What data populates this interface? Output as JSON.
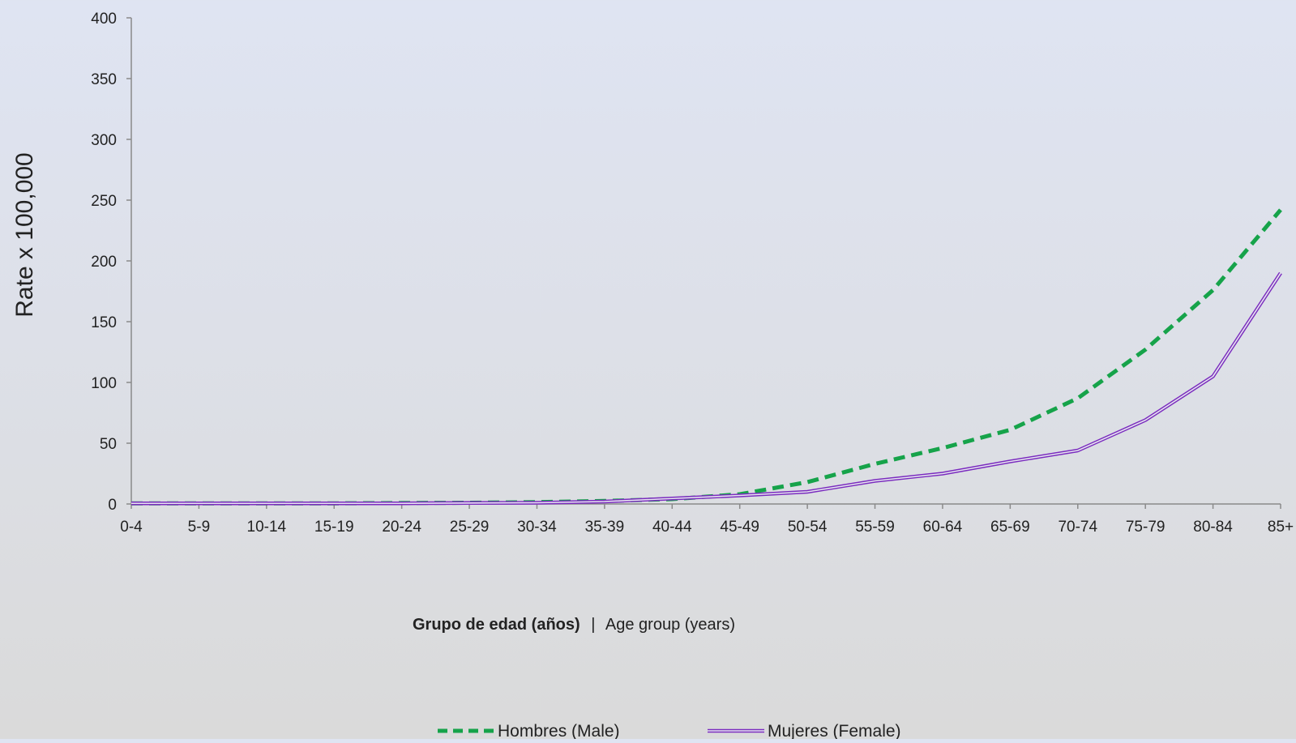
{
  "chart_data": {
    "type": "line",
    "x": [
      "0-4",
      "5-9",
      "10-14",
      "15-19",
      "20-24",
      "25-29",
      "30-34",
      "35-39",
      "40-44",
      "45-49",
      "50-54",
      "55-59",
      "60-64",
      "65-69",
      "70-74",
      "75-79",
      "80-84",
      "85+"
    ],
    "series": [
      {
        "name": "Hombres (Male)",
        "color": "#16a34a",
        "style": "dashed",
        "values": [
          0.5,
          0.5,
          0.5,
          0.5,
          0.8,
          1,
          1.5,
          2.5,
          4,
          8,
          18,
          33,
          46,
          61,
          87,
          127,
          176,
          242
        ]
      },
      {
        "name": "Mujeres (Female)",
        "color": "#7b2cbf",
        "style": "double",
        "values": [
          0.5,
          0.5,
          0.5,
          0.5,
          0.5,
          0.8,
          1,
          2,
          4.5,
          7,
          10,
          19,
          25,
          35,
          44,
          69,
          105,
          190
        ]
      }
    ],
    "ylim": [
      0,
      400
    ],
    "yticks": [
      0,
      50,
      100,
      150,
      200,
      250,
      300,
      350,
      400
    ],
    "ylabel": "Rate x 100,000",
    "xlabel_bold": "Grupo de edad (años)",
    "xlabel_separator": "|",
    "xlabel_normal": "Age group (years)",
    "grid": false,
    "legend_position": "bottom-center"
  }
}
